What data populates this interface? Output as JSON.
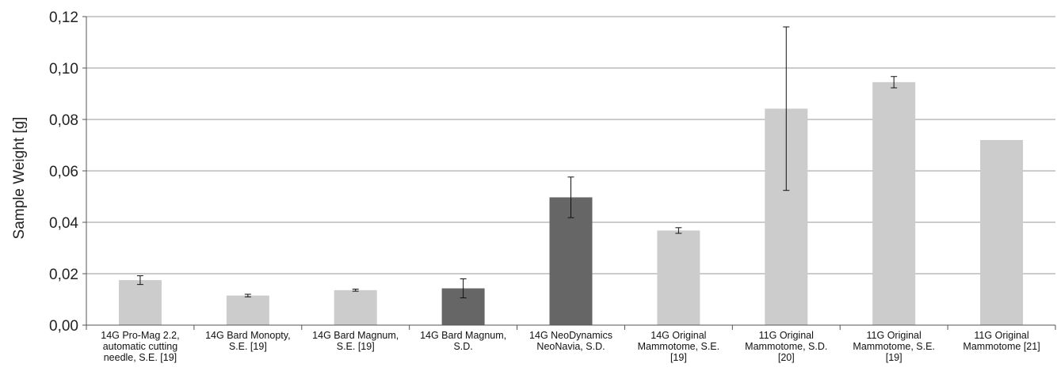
{
  "chart_data": {
    "type": "bar",
    "title": "",
    "xlabel": "",
    "ylabel": "Sample Weight [g]",
    "ylim": [
      0,
      0.12
    ],
    "yticks": [
      "0,00",
      "0,02",
      "0,04",
      "0,06",
      "0,08",
      "0,10",
      "0,12"
    ],
    "grid": true,
    "categories": [
      [
        "14G Pro-Mag 2.2,",
        "automatic cutting",
        "needle, S.E. [19]"
      ],
      [
        "14G Bard Monopty,",
        "S.E. [19]"
      ],
      [
        "14G Bard Magnum,",
        "S.E. [19]"
      ],
      [
        "14G Bard Magnum,",
        "S.D."
      ],
      [
        "14G NeoDynamics",
        "NeoNavia, S.D."
      ],
      [
        "14G Original",
        "Mammotome, S.E.",
        "[19]"
      ],
      [
        "11G Original",
        "Mammotome, S.D.",
        "[20]"
      ],
      [
        "11G Original",
        "Mammotome, S.E.",
        "[19]"
      ],
      [
        "11G Original",
        "Mammotome [21]"
      ]
    ],
    "values": [
      0.0175,
      0.0115,
      0.0136,
      0.0143,
      0.0497,
      0.0368,
      0.0842,
      0.0945,
      0.072
    ],
    "errors": [
      0.0017,
      0.0005,
      0.0004,
      0.0037,
      0.0079,
      0.0011,
      0.0318,
      0.0022,
      null
    ],
    "bar_colors": [
      "#cccccc",
      "#cccccc",
      "#cccccc",
      "#666666",
      "#666666",
      "#cccccc",
      "#cccccc",
      "#cccccc",
      "#cccccc"
    ]
  }
}
